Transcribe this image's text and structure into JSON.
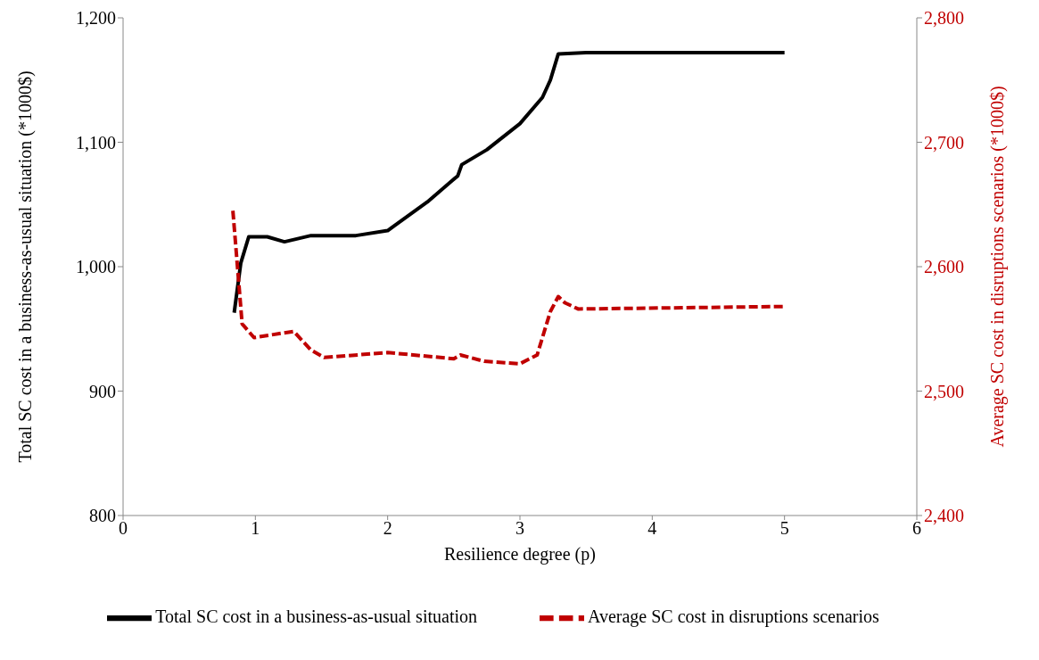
{
  "chart_data": {
    "type": "line",
    "xlabel": "Resilience degree (p)",
    "ylabel": "Total SC cost in a business-as-usual situation (*1000$)",
    "y2label": "Average SC cost in disruptions scenarios (*1000$)",
    "xlim": [
      0,
      6
    ],
    "xticks": [
      0,
      1,
      2,
      3,
      4,
      5,
      6
    ],
    "ylim": [
      800,
      1200
    ],
    "yticks": [
      {
        "value": 800,
        "label": "800"
      },
      {
        "value": 900,
        "label": "900"
      },
      {
        "value": 1000,
        "label": "1,000"
      },
      {
        "value": 1100,
        "label": "1,100"
      },
      {
        "value": 1200,
        "label": "1,200"
      }
    ],
    "y2lim": [
      2400,
      2800
    ],
    "y2ticks": [
      {
        "value": 2400,
        "label": "2,400"
      },
      {
        "value": 2500,
        "label": "2,500"
      },
      {
        "value": 2600,
        "label": "2,600"
      },
      {
        "value": 2700,
        "label": "2,700"
      },
      {
        "value": 2800,
        "label": "2,800"
      }
    ],
    "legend": "bottom",
    "marker": "none",
    "series": [
      {
        "name": "Total SC cost in a business-as-usual situation",
        "color": "#000000",
        "line_style": "solid",
        "x": [
          0.84,
          0.89,
          0.95,
          1.09,
          1.22,
          1.42,
          1.76,
          2.0,
          2.3,
          2.53,
          2.56,
          2.75,
          3.0,
          3.17,
          3.23,
          3.29,
          3.5,
          5.0
        ],
        "values": [
          963,
          1003,
          1024,
          1024,
          1020,
          1025,
          1025,
          1029,
          1052,
          1073,
          1082,
          1094,
          1115,
          1136,
          1150,
          1171,
          1172,
          1172
        ]
      },
      {
        "name": "Average SC cost in disruptions scenarios",
        "color": "#c00000",
        "line_style": "dashed",
        "axis": "y2",
        "x": [
          0.83,
          0.9,
          0.99,
          1.29,
          1.42,
          1.52,
          2.0,
          2.5,
          2.55,
          2.73,
          3.0,
          3.13,
          3.23,
          3.29,
          3.34,
          3.44,
          5.0
        ],
        "values": [
          2645,
          2554,
          2543,
          2548,
          2533,
          2527,
          2531,
          2526,
          2529,
          2524,
          2522,
          2529,
          2564,
          2576,
          2571,
          2566,
          2568
        ]
      }
    ]
  }
}
